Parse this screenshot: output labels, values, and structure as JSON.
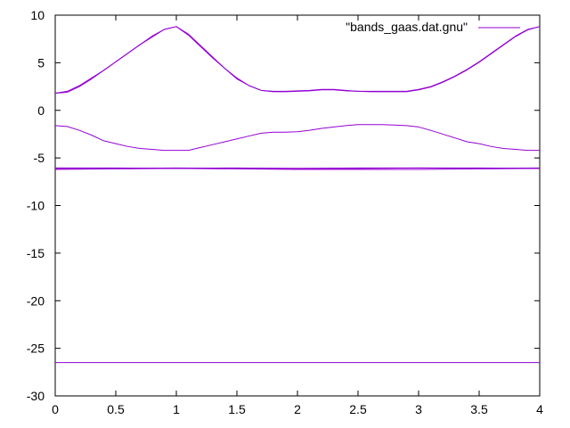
{
  "chart_data": {
    "type": "line",
    "title": "",
    "xlabel": "",
    "ylabel": "",
    "xlim": [
      0,
      4
    ],
    "ylim": [
      -30,
      10
    ],
    "x_ticks": [
      0,
      0.5,
      1,
      1.5,
      2,
      2.5,
      3,
      3.5,
      4
    ],
    "x_tick_labels": [
      "0",
      "0.5",
      "1",
      "1.5",
      "2",
      "2.5",
      "3",
      "3.5",
      "4"
    ],
    "y_ticks": [
      -30,
      -25,
      -20,
      -15,
      -10,
      -5,
      0,
      5,
      10
    ],
    "y_tick_labels": [
      "-30",
      "-25",
      "-20",
      "-15",
      "-10",
      "-5",
      "0",
      "5",
      "10"
    ],
    "grid": false,
    "legend_position": "top-right",
    "line_color": "#9400d3",
    "series": [
      {
        "name": "\"bands_gaas.dat.gnu\"",
        "bands": [
          {
            "x": [
              0,
              0.1,
              0.2,
              0.3,
              0.4,
              0.5,
              0.6,
              0.7,
              0.8,
              0.9,
              1.0,
              1.1,
              1.2,
              1.3,
              1.4,
              1.5,
              1.6,
              1.7,
              1.8,
              1.9,
              2.0,
              2.1,
              2.2,
              2.3,
              2.4,
              2.5,
              2.6,
              2.7,
              2.8,
              2.9,
              3.0,
              3.1,
              3.2,
              3.3,
              3.4,
              3.5,
              3.6,
              3.7,
              3.8,
              3.9,
              4.0
            ],
            "y": [
              -26.5,
              -26.5,
              -26.5,
              -26.5,
              -26.5,
              -26.5,
              -26.5,
              -26.5,
              -26.5,
              -26.5,
              -26.5,
              -26.5,
              -26.5,
              -26.5,
              -26.5,
              -26.5,
              -26.5,
              -26.5,
              -26.5,
              -26.5,
              -26.5,
              -26.5,
              -26.5,
              -26.5,
              -26.5,
              -26.5,
              -26.5,
              -26.5,
              -26.5,
              -26.5,
              -26.5,
              -26.5,
              -26.5,
              -26.5,
              -26.5,
              -26.5,
              -26.5,
              -26.5,
              -26.5,
              -26.5,
              -26.5
            ]
          },
          {
            "x": [
              0,
              0.5,
              1.0,
              1.5,
              2.0,
              2.5,
              3.0,
              3.5,
              4.0
            ],
            "y": [
              -6.2,
              -6.15,
              -6.1,
              -6.15,
              -6.2,
              -6.2,
              -6.2,
              -6.15,
              -6.1
            ]
          },
          {
            "x": [
              0,
              0.5,
              1.0,
              1.5,
              2.0,
              2.5,
              3.0,
              3.5,
              4.0
            ],
            "y": [
              -6.1,
              -6.1,
              -6.05,
              -6.1,
              -6.1,
              -6.05,
              -6.05,
              -6.05,
              -6.1
            ]
          },
          {
            "x": [
              0,
              0.5,
              1.0,
              1.5,
              2.0,
              2.5,
              3.0,
              3.5,
              4.0
            ],
            "y": [
              -6.05,
              -6.05,
              -6.1,
              -6.05,
              -6.1,
              -6.1,
              -6.05,
              -6.1,
              -6.05
            ]
          },
          {
            "x": [
              0,
              0.1,
              0.2,
              0.3,
              0.4,
              0.5,
              0.6,
              0.7,
              0.8,
              0.9,
              1.0,
              1.1,
              1.2,
              1.3,
              1.4,
              1.5,
              1.6,
              1.7,
              1.8,
              1.9,
              2.0,
              2.1,
              2.2,
              2.3,
              2.4,
              2.5,
              2.6,
              2.7,
              2.8,
              2.9,
              3.0,
              3.1,
              3.2,
              3.3,
              3.4,
              3.5,
              3.6,
              3.7,
              3.8,
              3.9,
              4.0
            ],
            "y": [
              -1.6,
              -1.7,
              -2.1,
              -2.6,
              -3.2,
              -3.5,
              -3.8,
              -4.0,
              -4.1,
              -4.2,
              -4.2,
              -4.2,
              -3.9,
              -3.6,
              -3.3,
              -3.0,
              -2.7,
              -2.4,
              -2.3,
              -2.3,
              -2.25,
              -2.1,
              -1.9,
              -1.75,
              -1.6,
              -1.5,
              -1.5,
              -1.5,
              -1.55,
              -1.6,
              -1.75,
              -2.1,
              -2.5,
              -2.9,
              -3.3,
              -3.5,
              -3.8,
              -4.0,
              -4.1,
              -4.2,
              -4.2
            ]
          },
          {
            "x": [
              0,
              0.1,
              0.2,
              0.3,
              0.4,
              0.5,
              0.6,
              0.7,
              0.8,
              0.9,
              1.0,
              1.1,
              1.2,
              1.3,
              1.4,
              1.5,
              1.6,
              1.7,
              1.8,
              1.9,
              2.0,
              2.1,
              2.2,
              2.3,
              2.4,
              2.5,
              2.6,
              2.7,
              2.8,
              2.9,
              3.0,
              3.1,
              3.2,
              3.3,
              3.4,
              3.5,
              3.6,
              3.7,
              3.8,
              3.9,
              4.0
            ],
            "y": [
              1.8,
              2.0,
              2.6,
              3.4,
              4.2,
              5.1,
              6.0,
              6.9,
              7.7,
              8.5,
              8.8,
              8.0,
              6.8,
              5.6,
              4.4,
              3.4,
              2.6,
              2.1,
              2.0,
              2.0,
              2.05,
              2.1,
              2.2,
              2.2,
              2.1,
              2.0,
              2.0,
              2.0,
              2.0,
              2.0,
              2.2,
              2.5,
              3.0,
              3.6,
              4.3,
              5.1,
              6.0,
              6.9,
              7.8,
              8.5,
              8.8
            ]
          },
          {
            "x": [
              0,
              0.1,
              0.2,
              0.3,
              0.4,
              0.5,
              0.6,
              0.7,
              0.8,
              0.9,
              1.0,
              1.1,
              1.2,
              1.3,
              1.4,
              1.5,
              1.6,
              1.7,
              1.8,
              1.9,
              2.0,
              2.1,
              2.2,
              2.3,
              2.4,
              2.5,
              2.6,
              2.7,
              2.8,
              2.9,
              3.0,
              3.1,
              3.2,
              3.3,
              3.4,
              3.5,
              3.6,
              3.7,
              3.8,
              3.9,
              4.0
            ],
            "y": [
              1.8,
              1.9,
              2.5,
              3.3,
              4.2,
              5.1,
              6.0,
              6.9,
              7.8,
              8.5,
              8.8,
              7.9,
              6.7,
              5.5,
              4.4,
              3.3,
              2.6,
              2.1,
              1.95,
              1.95,
              2.0,
              2.05,
              2.15,
              2.15,
              2.05,
              2.0,
              1.95,
              1.95,
              1.95,
              1.95,
              2.15,
              2.45,
              2.95,
              3.55,
              4.25,
              5.05,
              5.95,
              6.85,
              7.75,
              8.45,
              8.8
            ]
          }
        ]
      }
    ]
  }
}
